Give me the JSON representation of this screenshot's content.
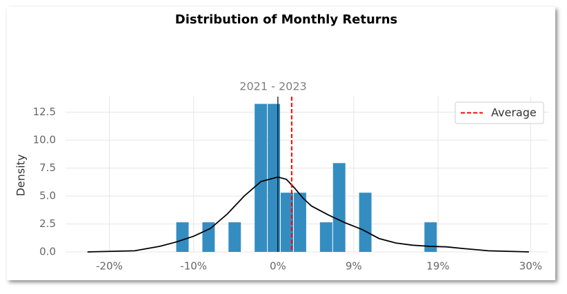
{
  "chart_data": {
    "type": "histogram",
    "title": "Distribution of Monthly Returns",
    "subtitle": "2021 - 2023",
    "ylabel": "Density",
    "bins": [
      -12.1,
      -10.55,
      -9.0,
      -7.45,
      -5.9,
      -4.35,
      -2.8,
      -1.25,
      0.3,
      1.85,
      3.4,
      4.95,
      6.5,
      8.05,
      9.6,
      11.15,
      12.7,
      14.25,
      15.8,
      17.35,
      18.9
    ],
    "counts": [
      2.65,
      0,
      2.65,
      0,
      2.65,
      0,
      13.25,
      13.25,
      5.3,
      5.3,
      0,
      2.65,
      7.95,
      0,
      5.3,
      0,
      0,
      0,
      0,
      2.65
    ],
    "color": "#348dc1",
    "kde": {
      "color": "#000000",
      "x": [
        -22.6,
        -17,
        -14,
        -12,
        -10,
        -8,
        -6,
        -4,
        -2,
        0,
        1,
        2,
        3,
        4,
        6,
        8,
        10,
        12,
        14,
        16,
        18,
        20,
        22,
        25,
        29.8
      ],
      "y": [
        0.0,
        0.1,
        0.5,
        0.9,
        1.4,
        2.1,
        3.4,
        5.0,
        6.3,
        6.7,
        6.5,
        5.7,
        4.8,
        4.1,
        3.3,
        2.6,
        2.0,
        1.2,
        0.8,
        0.6,
        0.5,
        0.45,
        0.3,
        0.1,
        0.0
      ]
    },
    "average": {
      "name": "Average",
      "value": 1.64,
      "color": "#ff0000"
    },
    "xlim": [
      -25.2,
      32.1
    ],
    "ylim": [
      0,
      13.9
    ],
    "xticks": [
      {
        "value": -20,
        "label": "-20%"
      },
      {
        "value": -10,
        "label": "-10%"
      },
      {
        "value": 0,
        "label": "0%"
      },
      {
        "value": 9,
        "label": "9%"
      },
      {
        "value": 19,
        "label": "19%"
      },
      {
        "value": 30,
        "label": "30%"
      }
    ],
    "yticks": [
      {
        "value": 0,
        "label": "0.0"
      },
      2.5,
      {
        "value": 5,
        "label": "5.0"
      },
      7.5,
      {
        "value": 10,
        "label": "10.0"
      },
      12.5
    ],
    "grid": true,
    "legend": "upper right"
  }
}
